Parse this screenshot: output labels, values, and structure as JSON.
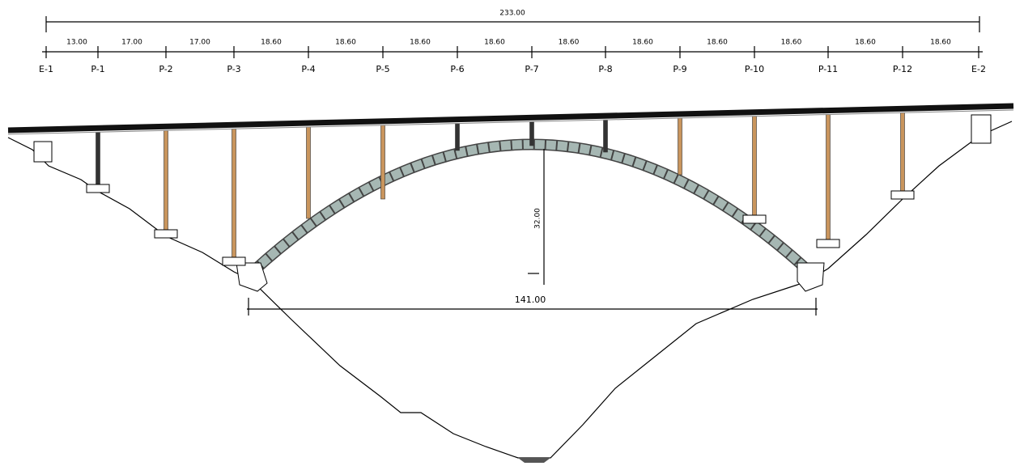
{
  "total_length": "233.00",
  "spans": [
    "13.00",
    "17.00",
    "17.00",
    "18.60",
    "18.60",
    "18.60",
    "18.60",
    "18.60",
    "18.60",
    "18.60",
    "18.60",
    "18.60",
    "18.60"
  ],
  "supports": [
    "E-1",
    "P-1",
    "P-2",
    "P-3",
    "P-4",
    "P-5",
    "P-6",
    "P-7",
    "P-8",
    "P-9",
    "P-10",
    "P-11",
    "P-12",
    "E-2"
  ],
  "arch_rise": "32.00",
  "arch_span": "141.00"
}
